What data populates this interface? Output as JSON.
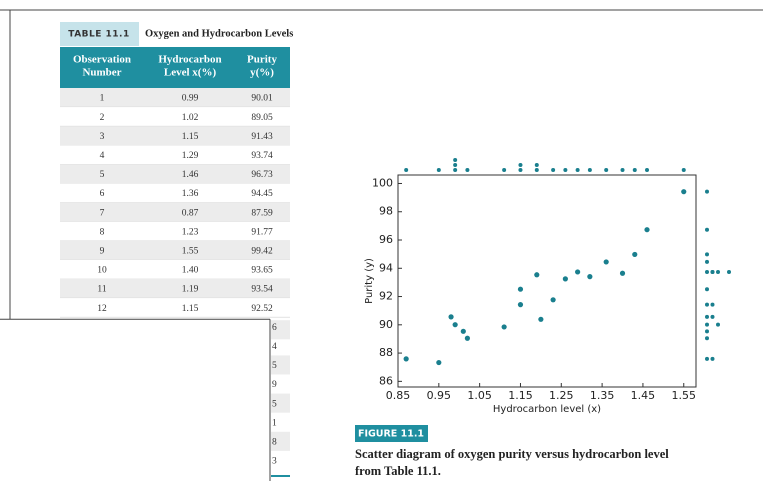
{
  "table": {
    "label": "TABLE 11.1",
    "title": "Oxygen and Hydrocarbon Levels",
    "headers": [
      [
        "Observation",
        "Number"
      ],
      [
        "Hydrocarbon",
        "Level x(%)"
      ],
      [
        "Purity",
        "y(%)"
      ]
    ],
    "rows": [
      [
        "1",
        "0.99",
        "90.01"
      ],
      [
        "2",
        "1.02",
        "89.05"
      ],
      [
        "3",
        "1.15",
        "91.43"
      ],
      [
        "4",
        "1.29",
        "93.74"
      ],
      [
        "5",
        "1.46",
        "96.73"
      ],
      [
        "6",
        "1.36",
        "94.45"
      ],
      [
        "7",
        "0.87",
        "87.59"
      ],
      [
        "8",
        "1.23",
        "91.77"
      ],
      [
        "9",
        "1.55",
        "99.42"
      ],
      [
        "10",
        "1.40",
        "93.65"
      ],
      [
        "11",
        "1.19",
        "93.54"
      ],
      [
        "12",
        "1.15",
        "92.52"
      ]
    ],
    "hidden_fragments": [
      "6",
      "4",
      "5",
      "9",
      "5",
      "1",
      "8",
      "3"
    ]
  },
  "chart_data": {
    "type": "scatter",
    "x": [
      0.99,
      1.02,
      1.15,
      1.29,
      1.46,
      1.36,
      0.87,
      1.23,
      1.55,
      1.4,
      1.19,
      1.15,
      0.98,
      1.01,
      1.11,
      1.2,
      1.26,
      1.32,
      1.43,
      0.95
    ],
    "values": [
      90.01,
      89.05,
      91.43,
      93.74,
      96.73,
      94.45,
      87.59,
      91.77,
      99.42,
      93.65,
      93.54,
      92.52,
      90.56,
      89.54,
      89.85,
      90.39,
      93.25,
      93.41,
      94.98,
      87.33
    ],
    "color": "#1a7f8e",
    "x_label": "Hydrocarbon level (x)",
    "y_label": "Purity (y)",
    "xlim": [
      0.85,
      1.58
    ],
    "ylim": [
      85.6,
      100.6
    ],
    "xticks": [
      0.85,
      0.95,
      1.05,
      1.15,
      1.25,
      1.35,
      1.45,
      1.55
    ],
    "yticks": [
      86,
      88,
      90,
      92,
      94,
      96,
      98,
      100
    ],
    "marginal_dot_plots": true,
    "figure_label": "FIGURE 11.1",
    "caption": [
      "Scatter diagram of oxygen purity versus hydrocarbon level",
      "from Table 11.1."
    ]
  }
}
